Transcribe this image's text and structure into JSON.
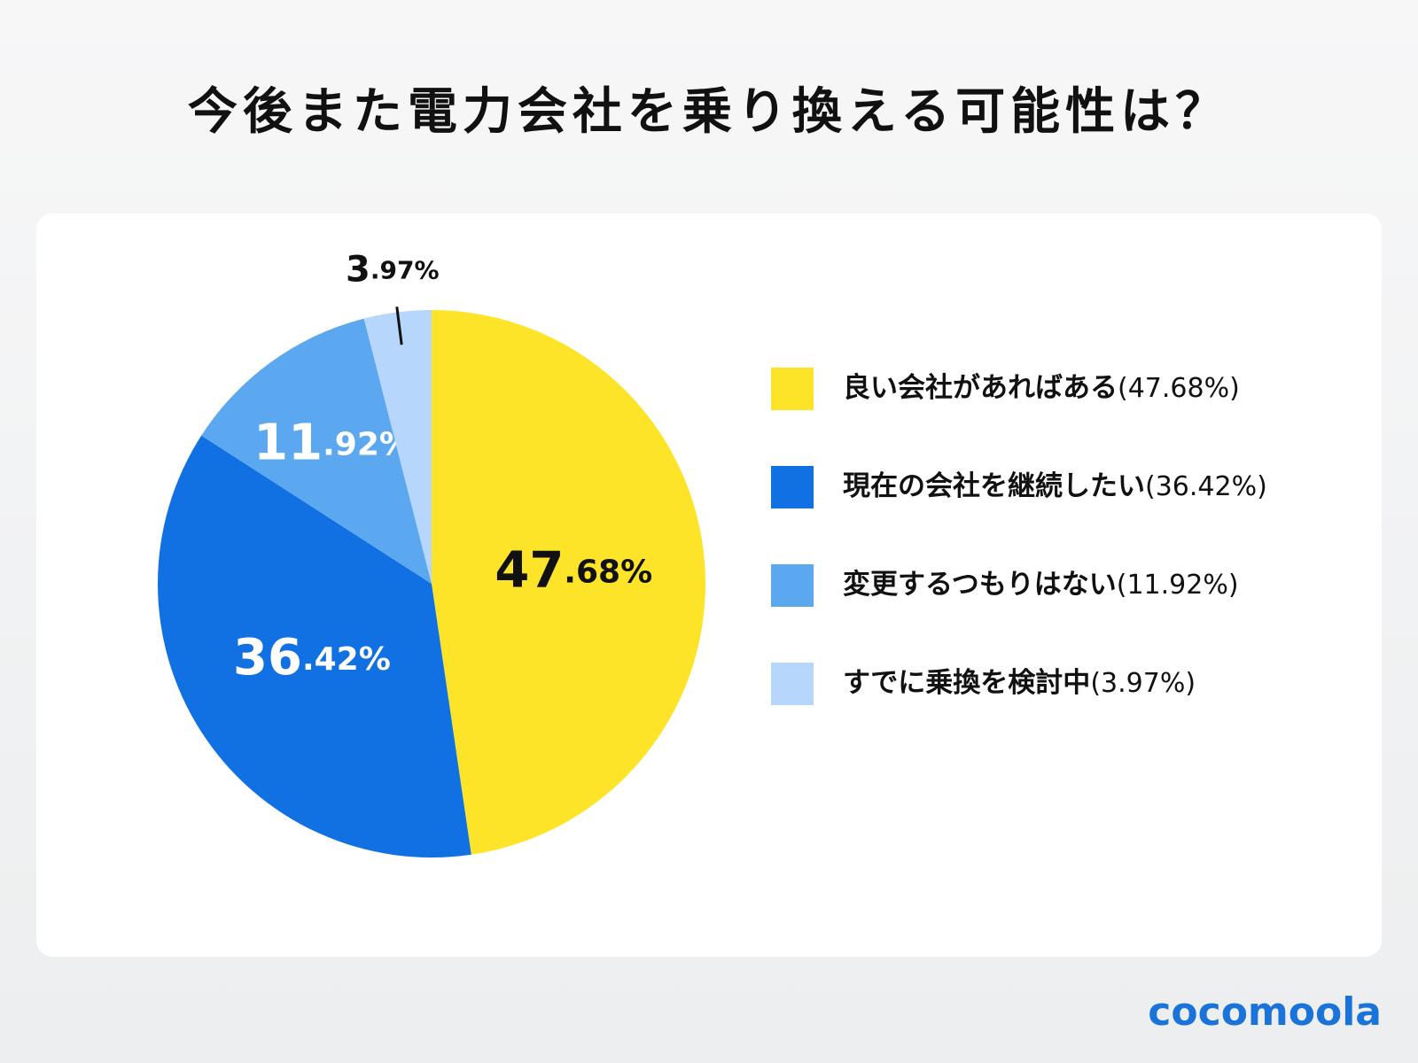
{
  "chart_data": {
    "type": "pie",
    "title": "今後また電力会社を乗り換える可能性は？",
    "categories": [
      "良い会社があればある",
      "現在の会社を継続したい",
      "変更するつもりはない",
      "すでに乗換を検討中"
    ],
    "values": [
      47.68,
      36.42,
      11.92,
      3.97
    ],
    "value_labels": [
      "47.68%",
      "36.42%",
      "11.92%",
      "3.97%"
    ],
    "legend_labels": [
      "(47.68%)",
      "(36.42%)",
      "(11.92%)",
      "(3.97%)"
    ],
    "colors": [
      "#fde428",
      "#1171e3",
      "#5ba8f1",
      "#b6d6fb"
    ],
    "legend": "right"
  },
  "brand": "cocomoola"
}
